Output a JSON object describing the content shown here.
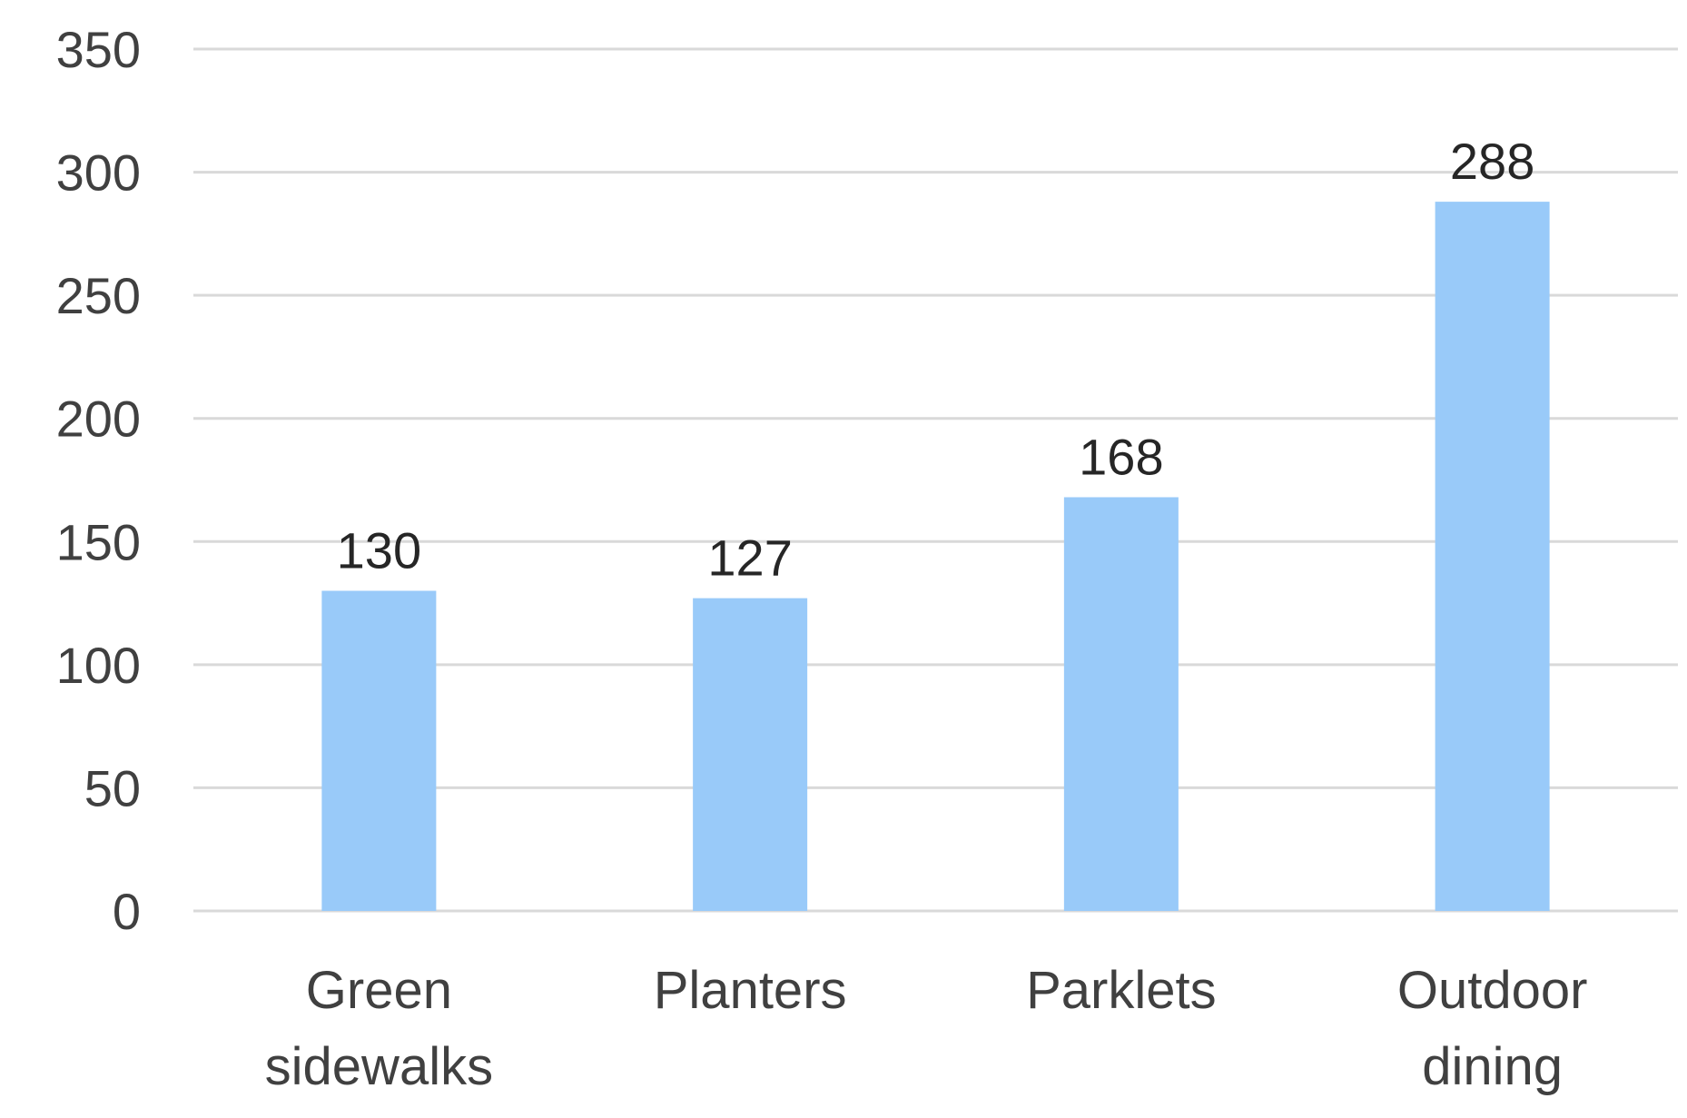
{
  "chart_data": {
    "type": "bar",
    "categories": [
      [
        "Green",
        "sidewalks"
      ],
      [
        "Planters"
      ],
      [
        "Parklets"
      ],
      [
        "Outdoor",
        "dining"
      ]
    ],
    "values": [
      130,
      127,
      168,
      288
    ],
    "data_labels": [
      "130",
      "127",
      "168",
      "288"
    ],
    "y_ticks": [
      "0",
      "50",
      "100",
      "150",
      "200",
      "250",
      "300",
      "350"
    ],
    "ylim": [
      0,
      350
    ],
    "title": "",
    "xlabel": "",
    "ylabel": "",
    "grid": true,
    "legend": "none",
    "bar_color": "#99caf9"
  }
}
